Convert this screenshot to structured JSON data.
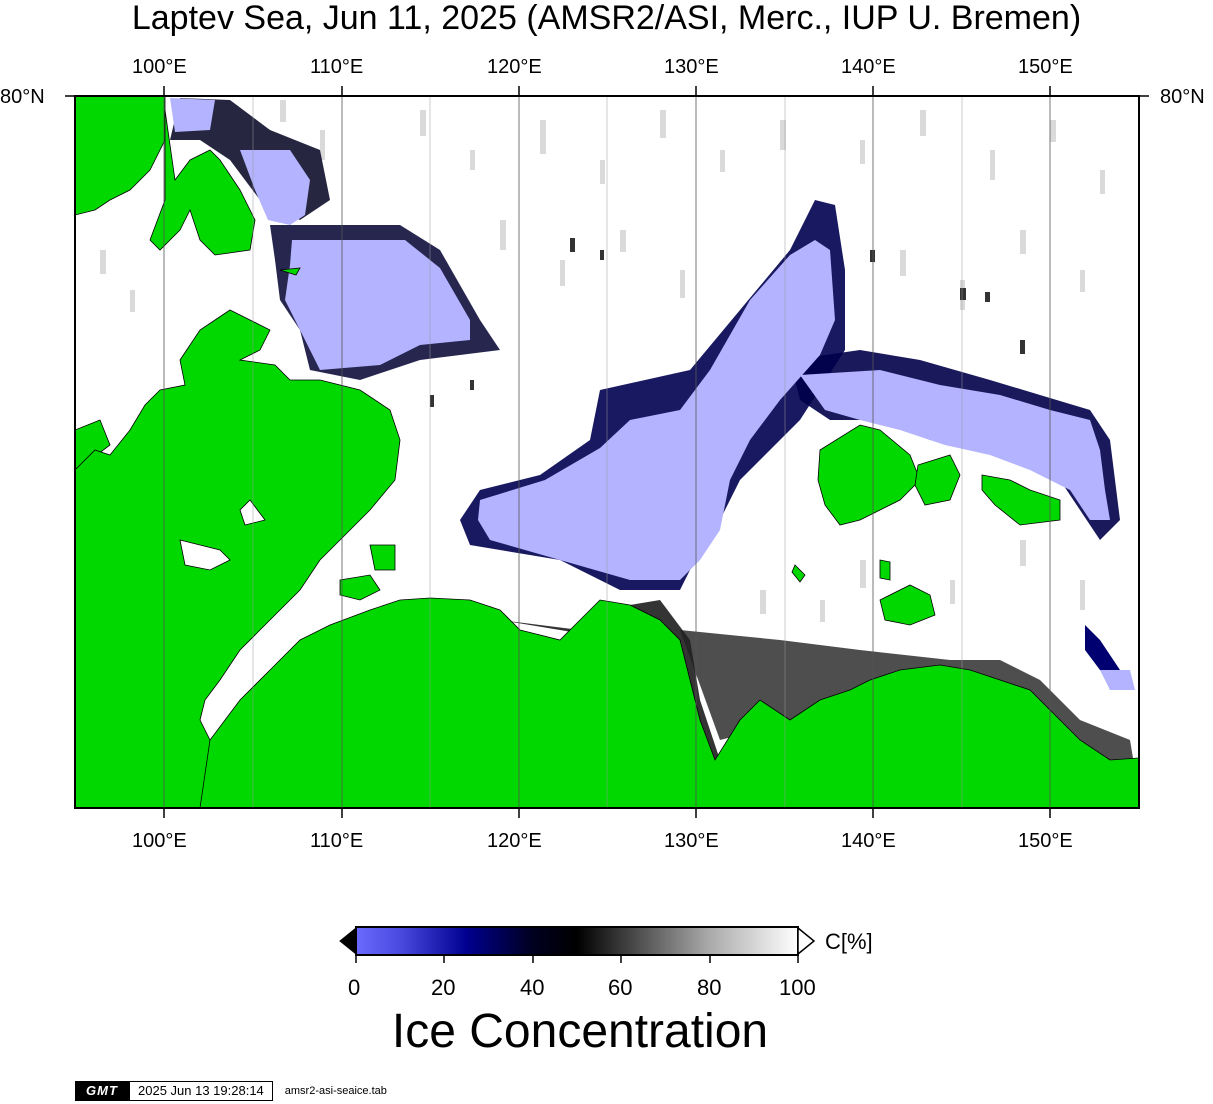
{
  "map": {
    "title": "Laptev Sea, Jun 11, 2025 (AMSR2/ASI, Merc., IUP U. Bremen)",
    "lon_ticks": [
      "100°E",
      "110°E",
      "120°E",
      "130°E",
      "140°E",
      "150°E"
    ],
    "lat_ticks": [
      "80°N"
    ],
    "lon_range": [
      95,
      155
    ],
    "colors": {
      "land": "#00d800",
      "open_water": "#b3b3ff",
      "ice_full": "#ffffff",
      "ice_mid": "#000000",
      "ice_low": "#00005a"
    }
  },
  "colorbar": {
    "ticks": [
      "0",
      "20",
      "40",
      "60",
      "80",
      "100"
    ],
    "unit": "C[%]",
    "title": "Ice Concentration"
  },
  "stamp": {
    "logo": "GMT",
    "timestamp": "2025 Jun 13 19:28:14",
    "file": "amsr2-asi-seaice.tab"
  }
}
